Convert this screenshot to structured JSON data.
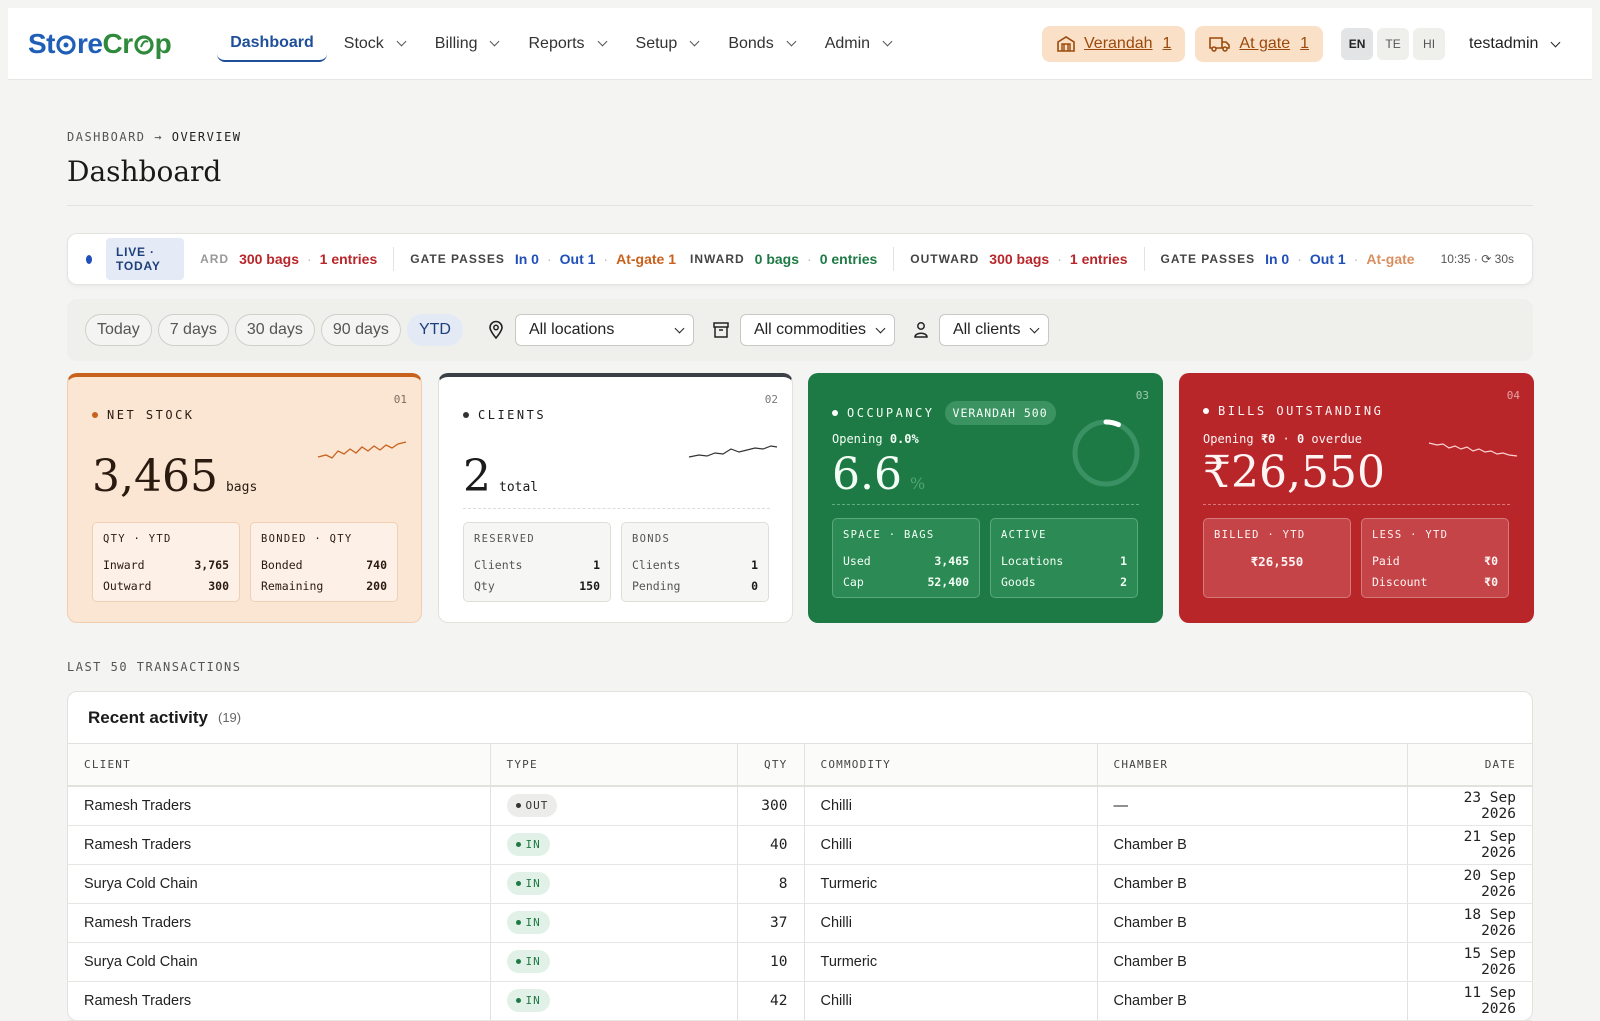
{
  "app": {
    "logo_part1": "St",
    "logo_o": "o",
    "logo_part2": "re",
    "logo_part3": "Cr",
    "logo_part4": "p"
  },
  "nav": [
    {
      "label": "Dashboard",
      "active": true
    },
    {
      "label": "Stock"
    },
    {
      "label": "Billing"
    },
    {
      "label": "Reports"
    },
    {
      "label": "Setup"
    },
    {
      "label": "Bonds"
    },
    {
      "label": "Admin"
    }
  ],
  "header_pills": {
    "verandah": {
      "label": "Verandah",
      "count": "1"
    },
    "atgate": {
      "label": "At gate",
      "count": "1"
    }
  },
  "languages": [
    "EN",
    "TE",
    "HI"
  ],
  "user": {
    "name": "testadmin"
  },
  "breadcrumb": {
    "root": "DASHBOARD",
    "arrow": "→",
    "current": "OVERVIEW"
  },
  "page_title": "Dashboard",
  "ticker": {
    "badge": "LIVE · TODAY",
    "inward_label_cut": "ARD",
    "inward_label": "INWARD",
    "outward_label": "OUTWARD",
    "gate_label": "GATE PASSES",
    "outward_bags": "300 bags",
    "outward_entries": "1 entries",
    "inward_bags": "0 bags",
    "inward_entries": "0 entries",
    "gate_in": "In 0",
    "gate_out": "Out 1",
    "gate_atgate": "At-gate 1",
    "gate_atgate_cut": "At-gate",
    "time": "10:35 · ⟳ 30s"
  },
  "filters": {
    "ranges": [
      "Today",
      "7 days",
      "30 days",
      "90 days",
      "YTD"
    ],
    "active_range": "YTD",
    "location": "All locations",
    "commodity": "All commodities",
    "client": "All clients"
  },
  "cards": {
    "net_stock": {
      "num": "01",
      "label": "NET STOCK",
      "value": "3,465",
      "unit": "bags",
      "box1": {
        "title": "QTY · YTD",
        "r1k": "Inward",
        "r1v": "3,765",
        "r2k": "Outward",
        "r2v": "300"
      },
      "box2": {
        "title": "BONDED · QTY",
        "r1k": "Bonded",
        "r1v": "740",
        "r2k": "Remaining",
        "r2v": "200"
      }
    },
    "clients": {
      "num": "02",
      "label": "CLIENTS",
      "value": "2",
      "unit": "total",
      "box1": {
        "title": "RESERVED",
        "r1k": "Clients",
        "r1v": "1",
        "r2k": "Qty",
        "r2v": "150"
      },
      "box2": {
        "title": "BONDS",
        "r1k": "Clients",
        "r1v": "1",
        "r2k": "Pending",
        "r2v": "0"
      }
    },
    "occupancy": {
      "num": "03",
      "label": "OCCUPANCY",
      "badge": "VERANDAH 500",
      "opening_label": "Opening",
      "opening_value": "0.0%",
      "value": "6.6",
      "unit": "%",
      "ring_fraction": 0.066,
      "box1": {
        "title": "SPACE · BAGS",
        "r1k": "Used",
        "r1v": "3,465",
        "r2k": "Cap",
        "r2v": "52,400"
      },
      "box2": {
        "title": "ACTIVE",
        "r1k": "Locations",
        "r1v": "1",
        "r2k": "Goods",
        "r2v": "2"
      }
    },
    "bills": {
      "num": "04",
      "label": "BILLS OUTSTANDING",
      "opening_label": "Opening",
      "opening_value": "₹0",
      "overdue_value": "0",
      "overdue_label": "overdue",
      "value": "₹26,550",
      "box1": {
        "title": "BILLED · YTD",
        "value": "₹26,550"
      },
      "box2": {
        "title": "LESS · YTD",
        "r1k": "Paid",
        "r1v": "₹0",
        "r2k": "Discount",
        "r2v": "₹0"
      }
    }
  },
  "section_label": "LAST 50 TRANSACTIONS",
  "activity": {
    "title": "Recent activity",
    "count": "(19)",
    "columns": [
      "CLIENT",
      "TYPE",
      "QTY",
      "COMMODITY",
      "CHAMBER",
      "DATE"
    ],
    "rows": [
      {
        "client": "Ramesh Traders",
        "type": "OUT",
        "qty": "300",
        "commodity": "Chilli",
        "chamber": "—",
        "date": "23 Sep 2026"
      },
      {
        "client": "Ramesh Traders",
        "type": "IN",
        "qty": "40",
        "commodity": "Chilli",
        "chamber": "Chamber B",
        "date": "21 Sep 2026"
      },
      {
        "client": "Surya Cold Chain",
        "type": "IN",
        "qty": "8",
        "commodity": "Turmeric",
        "chamber": "Chamber B",
        "date": "20 Sep 2026"
      },
      {
        "client": "Ramesh Traders",
        "type": "IN",
        "qty": "37",
        "commodity": "Chilli",
        "chamber": "Chamber B",
        "date": "18 Sep 2026"
      },
      {
        "client": "Surya Cold Chain",
        "type": "IN",
        "qty": "10",
        "commodity": "Turmeric",
        "chamber": "Chamber B",
        "date": "15 Sep 2026"
      },
      {
        "client": "Ramesh Traders",
        "type": "IN",
        "qty": "42",
        "commodity": "Chilli",
        "chamber": "Chamber B",
        "date": "11 Sep 2026"
      }
    ]
  },
  "colors": {
    "accent": "#1f4f99",
    "brand_blue": "#1f5fb8",
    "brand_green": "#2f8a3c",
    "stock": "#c8611c",
    "occupancy": "#1e7a45",
    "bills": "#b8262a"
  }
}
